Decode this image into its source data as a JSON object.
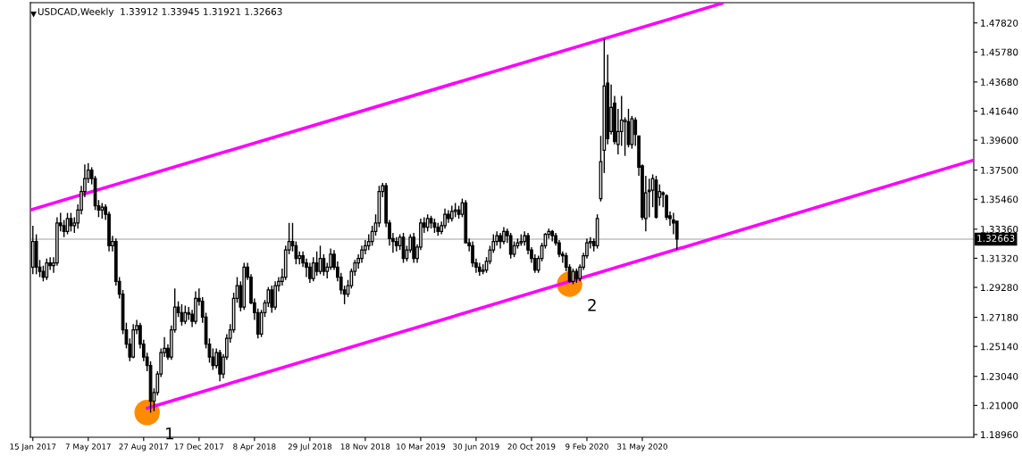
{
  "chart_data": {
    "type": "candlestick",
    "title": "USDCAD,Weekly  1.33912 1.33945 1.31921 1.32663",
    "x": [
      "2017-01-15",
      "2017-01-22",
      "2017-01-29",
      "2017-02-05",
      "2017-02-12",
      "2017-02-19",
      "2017-02-26",
      "2017-03-05",
      "2017-03-12",
      "2017-03-19",
      "2017-03-26",
      "2017-04-02",
      "2017-04-09",
      "2017-04-16",
      "2017-04-23",
      "2017-04-30",
      "2017-05-07",
      "2017-05-14",
      "2017-05-21",
      "2017-05-28",
      "2017-06-04",
      "2017-06-11",
      "2017-06-18",
      "2017-06-25",
      "2017-07-02",
      "2017-07-09",
      "2017-07-16",
      "2017-07-23",
      "2017-07-30",
      "2017-08-06",
      "2017-08-13",
      "2017-08-20",
      "2017-08-27",
      "2017-09-03",
      "2017-09-10",
      "2017-09-17",
      "2017-09-24",
      "2017-10-01",
      "2017-10-08",
      "2017-10-15",
      "2017-10-22",
      "2017-10-29",
      "2017-11-05",
      "2017-11-12",
      "2017-11-19",
      "2017-11-26",
      "2017-12-03",
      "2017-12-10",
      "2017-12-17",
      "2017-12-24",
      "2017-12-31",
      "2018-01-07",
      "2018-01-14",
      "2018-01-21",
      "2018-01-28",
      "2018-02-04",
      "2018-02-11",
      "2018-02-18",
      "2018-02-25",
      "2018-03-04",
      "2018-03-11",
      "2018-03-18",
      "2018-03-25",
      "2018-04-01",
      "2018-04-08",
      "2018-04-15",
      "2018-04-22",
      "2018-04-29",
      "2018-05-06",
      "2018-05-13",
      "2018-05-20",
      "2018-05-27",
      "2018-06-03",
      "2018-06-10",
      "2018-06-17",
      "2018-06-24",
      "2018-07-01",
      "2018-07-08",
      "2018-07-15",
      "2018-07-22",
      "2018-07-29",
      "2018-08-05",
      "2018-08-12",
      "2018-08-19",
      "2018-08-26",
      "2018-09-02",
      "2018-09-09",
      "2018-09-16",
      "2018-09-23",
      "2018-09-30",
      "2018-10-07",
      "2018-10-14",
      "2018-10-21",
      "2018-10-28",
      "2018-11-04",
      "2018-11-11",
      "2018-11-18",
      "2018-11-25",
      "2018-12-02",
      "2018-12-09",
      "2018-12-16",
      "2018-12-23",
      "2018-12-30",
      "2019-01-06",
      "2019-01-13",
      "2019-01-20",
      "2019-01-27",
      "2019-02-03",
      "2019-02-10",
      "2019-02-17",
      "2019-02-24",
      "2019-03-03",
      "2019-03-10",
      "2019-03-17",
      "2019-03-24",
      "2019-03-31",
      "2019-04-07",
      "2019-04-14",
      "2019-04-21",
      "2019-04-28",
      "2019-05-05",
      "2019-05-12",
      "2019-05-19",
      "2019-05-26",
      "2019-06-02",
      "2019-06-09",
      "2019-06-16",
      "2019-06-23",
      "2019-06-30",
      "2019-07-07",
      "2019-07-14",
      "2019-07-21",
      "2019-07-28",
      "2019-08-04",
      "2019-08-11",
      "2019-08-18",
      "2019-08-25",
      "2019-09-01",
      "2019-09-08",
      "2019-09-15",
      "2019-09-22",
      "2019-09-29",
      "2019-10-06",
      "2019-10-13",
      "2019-10-20",
      "2019-10-27",
      "2019-11-03",
      "2019-11-10",
      "2019-11-17",
      "2019-11-24",
      "2019-12-01",
      "2019-12-08",
      "2019-12-15",
      "2019-12-22",
      "2019-12-29",
      "2020-01-05",
      "2020-01-12",
      "2020-01-19",
      "2020-01-26",
      "2020-02-02",
      "2020-02-09",
      "2020-02-16",
      "2020-02-23",
      "2020-03-01",
      "2020-03-08",
      "2020-03-15",
      "2020-03-22",
      "2020-03-29",
      "2020-04-05",
      "2020-04-12",
      "2020-04-19",
      "2020-04-26",
      "2020-05-03",
      "2020-05-10",
      "2020-05-17",
      "2020-05-24",
      "2020-05-31",
      "2020-06-07",
      "2020-06-14",
      "2020-06-21",
      "2020-06-28",
      "2020-07-05",
      "2020-07-12",
      "2020-07-19",
      "2020-07-26",
      "2020-08-02",
      "2020-08-09"
    ],
    "ohlc": [
      [
        1.307,
        1.336,
        1.302,
        1.325
      ],
      [
        1.325,
        1.33,
        1.302,
        1.307
      ],
      [
        1.307,
        1.312,
        1.3,
        1.304
      ],
      [
        1.304,
        1.308,
        1.297,
        1.3
      ],
      [
        1.3,
        1.313,
        1.298,
        1.31
      ],
      [
        1.31,
        1.314,
        1.305,
        1.308
      ],
      [
        1.308,
        1.314,
        1.303,
        1.31
      ],
      [
        1.31,
        1.342,
        1.308,
        1.338
      ],
      [
        1.338,
        1.345,
        1.332,
        1.336
      ],
      [
        1.336,
        1.34,
        1.328,
        1.332
      ],
      [
        1.332,
        1.345,
        1.33,
        1.341
      ],
      [
        1.341,
        1.345,
        1.332,
        1.336
      ],
      [
        1.336,
        1.342,
        1.331,
        1.338
      ],
      [
        1.338,
        1.351,
        1.334,
        1.347
      ],
      [
        1.347,
        1.364,
        1.344,
        1.36
      ],
      [
        1.36,
        1.379,
        1.356,
        1.369
      ],
      [
        1.369,
        1.38,
        1.366,
        1.375
      ],
      [
        1.375,
        1.377,
        1.365,
        1.369
      ],
      [
        1.369,
        1.371,
        1.347,
        1.35
      ],
      [
        1.35,
        1.354,
        1.342,
        1.347
      ],
      [
        1.347,
        1.352,
        1.341,
        1.349
      ],
      [
        1.349,
        1.351,
        1.34,
        1.344
      ],
      [
        1.344,
        1.346,
        1.318,
        1.322
      ],
      [
        1.322,
        1.329,
        1.318,
        1.325
      ],
      [
        1.325,
        1.327,
        1.294,
        1.297
      ],
      [
        1.297,
        1.3,
        1.285,
        1.288
      ],
      [
        1.288,
        1.291,
        1.26,
        1.263
      ],
      [
        1.263,
        1.268,
        1.25,
        1.253
      ],
      [
        1.253,
        1.257,
        1.241,
        1.244
      ],
      [
        1.244,
        1.267,
        1.243,
        1.263
      ],
      [
        1.263,
        1.27,
        1.26,
        1.266
      ],
      [
        1.266,
        1.268,
        1.25,
        1.253
      ],
      [
        1.253,
        1.256,
        1.241,
        1.244
      ],
      [
        1.244,
        1.247,
        1.234,
        1.238
      ],
      [
        1.238,
        1.241,
        1.205,
        1.213
      ],
      [
        1.213,
        1.222,
        1.206,
        1.219
      ],
      [
        1.219,
        1.234,
        1.217,
        1.232
      ],
      [
        1.232,
        1.25,
        1.23,
        1.247
      ],
      [
        1.247,
        1.258,
        1.244,
        1.25
      ],
      [
        1.25,
        1.253,
        1.242,
        1.244
      ],
      [
        1.244,
        1.266,
        1.242,
        1.263
      ],
      [
        1.263,
        1.292,
        1.261,
        1.279
      ],
      [
        1.279,
        1.283,
        1.272,
        1.275
      ],
      [
        1.275,
        1.281,
        1.266,
        1.269
      ],
      [
        1.269,
        1.28,
        1.267,
        1.275
      ],
      [
        1.275,
        1.279,
        1.27,
        1.274
      ],
      [
        1.274,
        1.277,
        1.265,
        1.269
      ],
      [
        1.269,
        1.29,
        1.267,
        1.285
      ],
      [
        1.285,
        1.292,
        1.28,
        1.283
      ],
      [
        1.283,
        1.286,
        1.268,
        1.272
      ],
      [
        1.272,
        1.275,
        1.25,
        1.253
      ],
      [
        1.253,
        1.257,
        1.24,
        1.244
      ],
      [
        1.244,
        1.25,
        1.235,
        1.238
      ],
      [
        1.238,
        1.25,
        1.236,
        1.247
      ],
      [
        1.247,
        1.249,
        1.227,
        1.232
      ],
      [
        1.232,
        1.246,
        1.229,
        1.244
      ],
      [
        1.244,
        1.26,
        1.242,
        1.257
      ],
      [
        1.257,
        1.267,
        1.254,
        1.263
      ],
      [
        1.263,
        1.289,
        1.261,
        1.285
      ],
      [
        1.285,
        1.3,
        1.282,
        1.294
      ],
      [
        1.294,
        1.297,
        1.276,
        1.279
      ],
      [
        1.279,
        1.31,
        1.277,
        1.307
      ],
      [
        1.307,
        1.31,
        1.298,
        1.3
      ],
      [
        1.3,
        1.302,
        1.281,
        1.282
      ],
      [
        1.282,
        1.285,
        1.27,
        1.275
      ],
      [
        1.275,
        1.278,
        1.257,
        1.26
      ],
      [
        1.26,
        1.277,
        1.258,
        1.275
      ],
      [
        1.275,
        1.284,
        1.272,
        1.282
      ],
      [
        1.282,
        1.293,
        1.279,
        1.291
      ],
      [
        1.291,
        1.294,
        1.275,
        1.279
      ],
      [
        1.279,
        1.297,
        1.277,
        1.294
      ],
      [
        1.294,
        1.3,
        1.29,
        1.297
      ],
      [
        1.297,
        1.306,
        1.294,
        1.3
      ],
      [
        1.3,
        1.322,
        1.298,
        1.319
      ],
      [
        1.319,
        1.338,
        1.316,
        1.325
      ],
      [
        1.325,
        1.338,
        1.318,
        1.322
      ],
      [
        1.322,
        1.325,
        1.309,
        1.313
      ],
      [
        1.313,
        1.318,
        1.309,
        1.315
      ],
      [
        1.315,
        1.318,
        1.307,
        1.31
      ],
      [
        1.31,
        1.313,
        1.3,
        1.307
      ],
      [
        1.307,
        1.31,
        1.296,
        1.299
      ],
      [
        1.299,
        1.314,
        1.297,
        1.31
      ],
      [
        1.31,
        1.318,
        1.301,
        1.304
      ],
      [
        1.304,
        1.322,
        1.302,
        1.313
      ],
      [
        1.313,
        1.316,
        1.301,
        1.304
      ],
      [
        1.304,
        1.31,
        1.299,
        1.307
      ],
      [
        1.307,
        1.32,
        1.305,
        1.316
      ],
      [
        1.316,
        1.319,
        1.305,
        1.307
      ],
      [
        1.307,
        1.311,
        1.297,
        1.3
      ],
      [
        1.3,
        1.303,
        1.288,
        1.291
      ],
      [
        1.291,
        1.294,
        1.281,
        1.288
      ],
      [
        1.288,
        1.298,
        1.286,
        1.294
      ],
      [
        1.294,
        1.306,
        1.292,
        1.304
      ],
      [
        1.304,
        1.312,
        1.301,
        1.31
      ],
      [
        1.31,
        1.316,
        1.306,
        1.313
      ],
      [
        1.313,
        1.322,
        1.31,
        1.319
      ],
      [
        1.319,
        1.326,
        1.316,
        1.322
      ],
      [
        1.322,
        1.33,
        1.319,
        1.325
      ],
      [
        1.325,
        1.336,
        1.322,
        1.332
      ],
      [
        1.332,
        1.344,
        1.329,
        1.338
      ],
      [
        1.338,
        1.364,
        1.335,
        1.36
      ],
      [
        1.36,
        1.366,
        1.356,
        1.364
      ],
      [
        1.364,
        1.366,
        1.335,
        1.338
      ],
      [
        1.338,
        1.34,
        1.322,
        1.327
      ],
      [
        1.327,
        1.331,
        1.317,
        1.325
      ],
      [
        1.325,
        1.328,
        1.318,
        1.322
      ],
      [
        1.322,
        1.33,
        1.319,
        1.328
      ],
      [
        1.328,
        1.331,
        1.31,
        1.313
      ],
      [
        1.313,
        1.322,
        1.311,
        1.319
      ],
      [
        1.319,
        1.33,
        1.317,
        1.328
      ],
      [
        1.328,
        1.331,
        1.31,
        1.313
      ],
      [
        1.313,
        1.323,
        1.31,
        1.321
      ],
      [
        1.321,
        1.341,
        1.319,
        1.338
      ],
      [
        1.338,
        1.342,
        1.331,
        1.335
      ],
      [
        1.335,
        1.344,
        1.332,
        1.341
      ],
      [
        1.341,
        1.343,
        1.334,
        1.338
      ],
      [
        1.338,
        1.341,
        1.331,
        1.335
      ],
      [
        1.335,
        1.338,
        1.329,
        1.332
      ],
      [
        1.332,
        1.339,
        1.33,
        1.336
      ],
      [
        1.336,
        1.348,
        1.334,
        1.344
      ],
      [
        1.344,
        1.347,
        1.338,
        1.341
      ],
      [
        1.341,
        1.35,
        1.339,
        1.346
      ],
      [
        1.346,
        1.352,
        1.342,
        1.347
      ],
      [
        1.347,
        1.35,
        1.341,
        1.344
      ],
      [
        1.344,
        1.355,
        1.342,
        1.352
      ],
      [
        1.352,
        1.354,
        1.324,
        1.324
      ],
      [
        1.324,
        1.327,
        1.318,
        1.322
      ],
      [
        1.322,
        1.325,
        1.307,
        1.31
      ],
      [
        1.31,
        1.313,
        1.303,
        1.307
      ],
      [
        1.307,
        1.31,
        1.301,
        1.304
      ],
      [
        1.304,
        1.309,
        1.302,
        1.305
      ],
      [
        1.305,
        1.314,
        1.303,
        1.311
      ],
      [
        1.311,
        1.322,
        1.309,
        1.319
      ],
      [
        1.319,
        1.33,
        1.317,
        1.325
      ],
      [
        1.325,
        1.332,
        1.322,
        1.329
      ],
      [
        1.329,
        1.331,
        1.32,
        1.325
      ],
      [
        1.325,
        1.335,
        1.323,
        1.332
      ],
      [
        1.332,
        1.334,
        1.324,
        1.329
      ],
      [
        1.329,
        1.331,
        1.313,
        1.316
      ],
      [
        1.316,
        1.325,
        1.314,
        1.322
      ],
      [
        1.322,
        1.327,
        1.32,
        1.324
      ],
      [
        1.324,
        1.33,
        1.322,
        1.325
      ],
      [
        1.325,
        1.332,
        1.322,
        1.329
      ],
      [
        1.329,
        1.331,
        1.316,
        1.319
      ],
      [
        1.319,
        1.321,
        1.31,
        1.313
      ],
      [
        1.313,
        1.316,
        1.303,
        1.305
      ],
      [
        1.305,
        1.315,
        1.303,
        1.313
      ],
      [
        1.313,
        1.324,
        1.311,
        1.322
      ],
      [
        1.322,
        1.331,
        1.32,
        1.33
      ],
      [
        1.33,
        1.334,
        1.327,
        1.332
      ],
      [
        1.332,
        1.333,
        1.325,
        1.329
      ],
      [
        1.329,
        1.331,
        1.322,
        1.324
      ],
      [
        1.324,
        1.326,
        1.314,
        1.316
      ],
      [
        1.316,
        1.318,
        1.31,
        1.315
      ],
      [
        1.315,
        1.317,
        1.304,
        1.307
      ],
      [
        1.307,
        1.309,
        1.296,
        1.297
      ],
      [
        1.297,
        1.306,
        1.295,
        1.304
      ],
      [
        1.304,
        1.306,
        1.296,
        1.299
      ],
      [
        1.299,
        1.309,
        1.297,
        1.307
      ],
      [
        1.307,
        1.317,
        1.305,
        1.315
      ],
      [
        1.315,
        1.327,
        1.313,
        1.324
      ],
      [
        1.324,
        1.328,
        1.32,
        1.325
      ],
      [
        1.325,
        1.327,
        1.318,
        1.322
      ],
      [
        1.322,
        1.344,
        1.32,
        1.341
      ],
      [
        1.355,
        1.399,
        1.353,
        1.381
      ],
      [
        1.389,
        1.467,
        1.373,
        1.434
      ],
      [
        1.436,
        1.456,
        1.393,
        1.397
      ],
      [
        1.402,
        1.435,
        1.4,
        1.419
      ],
      [
        1.422,
        1.427,
        1.393,
        1.395
      ],
      [
        1.393,
        1.418,
        1.386,
        1.402
      ],
      [
        1.402,
        1.427,
        1.392,
        1.41
      ],
      [
        1.409,
        1.412,
        1.385,
        1.41
      ],
      [
        1.409,
        1.418,
        1.391,
        1.393
      ],
      [
        1.393,
        1.413,
        1.39,
        1.411
      ],
      [
        1.41,
        1.412,
        1.392,
        1.4
      ],
      [
        1.399,
        1.399,
        1.371,
        1.377
      ],
      [
        1.378,
        1.379,
        1.34,
        1.342
      ],
      [
        1.341,
        1.371,
        1.332,
        1.359
      ],
      [
        1.36,
        1.369,
        1.342,
        1.361
      ],
      [
        1.361,
        1.372,
        1.349,
        1.369
      ],
      [
        1.368,
        1.371,
        1.341,
        1.342
      ],
      [
        1.356,
        1.365,
        1.35,
        1.36
      ],
      [
        1.359,
        1.36,
        1.349,
        1.358
      ],
      [
        1.357,
        1.358,
        1.34,
        1.342
      ],
      [
        1.343,
        1.346,
        1.336,
        1.341
      ],
      [
        1.34,
        1.345,
        1.33,
        1.338
      ],
      [
        1.33912,
        1.33945,
        1.31921,
        1.32663
      ]
    ],
    "series": [
      {
        "type": "line",
        "x": [
          "2017-01-10",
          "2020-11-09"
        ],
        "values": [
          1.347,
          1.492
        ],
        "color": "#ff00ff"
      },
      {
        "type": "line",
        "x": [
          "2017-09-03",
          "2022-04-01"
        ],
        "values": [
          1.208,
          1.382
        ],
        "color": "#ff00ff"
      },
      {
        "type": "scatter",
        "x": [
          "2017-09-03",
          "2020-01-05"
        ],
        "values": [
          1.205,
          1.295
        ],
        "color": "#ff8c00",
        "marker": "circle"
      }
    ],
    "annotations": [
      {
        "text": "1",
        "x": "2017-09-03",
        "y": 1.205
      },
      {
        "text": "2",
        "x": "2020-01-05",
        "y": 1.295
      }
    ],
    "ref_lines": [
      {
        "axis": "y",
        "value": 1.32663,
        "label": "1.32663",
        "color": "#c0c0c0"
      }
    ],
    "xlim": [
      "2017-01-10",
      "2022-04-01"
    ],
    "xticks": [
      {
        "value": "2017-01-15",
        "label": "15 Jan 2017"
      },
      {
        "value": "2017-05-07",
        "label": "7 May 2017"
      },
      {
        "value": "2017-08-27",
        "label": "27 Aug 2017"
      },
      {
        "value": "2017-12-17",
        "label": "17 Dec 2017"
      },
      {
        "value": "2018-04-08",
        "label": "8 Apr 2018"
      },
      {
        "value": "2018-07-29",
        "label": "29 Jul 2018"
      },
      {
        "value": "2018-11-18",
        "label": "18 Nov 2018"
      },
      {
        "value": "2019-03-10",
        "label": "10 Mar 2019"
      },
      {
        "value": "2019-06-30",
        "label": "30 Jun 2019"
      },
      {
        "value": "2019-10-20",
        "label": "20 Oct 2019"
      },
      {
        "value": "2020-02-09",
        "label": "9 Feb 2020"
      },
      {
        "value": "2020-05-31",
        "label": "31 May 2020"
      }
    ],
    "ylim": [
      1.1877,
      1.4924
    ],
    "yticks": [
      {
        "value": 1.1896,
        "label": "1.18960"
      },
      {
        "value": 1.21,
        "label": "1.21000"
      },
      {
        "value": 1.2304,
        "label": "1.23040"
      },
      {
        "value": 1.2514,
        "label": "1.25140"
      },
      {
        "value": 1.2718,
        "label": "1.27180"
      },
      {
        "value": 1.2928,
        "label": "1.29280"
      },
      {
        "value": 1.3132,
        "label": "1.31320"
      },
      {
        "value": 1.3336,
        "label": "1.33360"
      },
      {
        "value": 1.3546,
        "label": "1.35460"
      },
      {
        "value": 1.375,
        "label": "1.37500"
      },
      {
        "value": 1.396,
        "label": "1.39600"
      },
      {
        "value": 1.4164,
        "label": "1.41640"
      },
      {
        "value": 1.4368,
        "label": "1.43680"
      },
      {
        "value": 1.4578,
        "label": "1.45780"
      },
      {
        "value": 1.4782,
        "label": "1.47820"
      }
    ]
  }
}
